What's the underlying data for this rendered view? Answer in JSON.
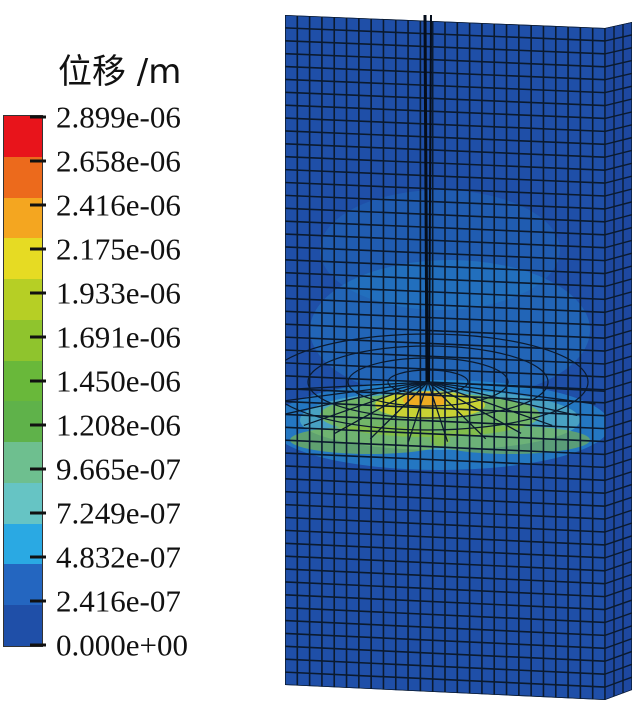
{
  "legend": {
    "title": "位移 /m",
    "levels": [
      {
        "label": "2.899e-06",
        "color": "#e8141b"
      },
      {
        "label": "2.658e-06",
        "color": "#ec6a1c"
      },
      {
        "label": "2.416e-06",
        "color": "#f4a620"
      },
      {
        "label": "2.175e-06",
        "color": "#e6db23"
      },
      {
        "label": "1.933e-06",
        "color": "#b6cf25"
      },
      {
        "label": "1.691e-06",
        "color": "#8fc42d"
      },
      {
        "label": "1.450e-06",
        "color": "#69b83a"
      },
      {
        "label": "1.208e-06",
        "color": "#5fb24a"
      },
      {
        "label": "9.665e-07",
        "color": "#6ebf8f"
      },
      {
        "label": "7.249e-07",
        "color": "#66c4c4"
      },
      {
        "label": "4.832e-07",
        "color": "#2aa9e3"
      },
      {
        "label": "2.416e-07",
        "color": "#2466c0"
      },
      {
        "label": "0.000e+00",
        "color": "#1f4fa8"
      }
    ]
  },
  "model": {
    "base_color": "#1f4fa8",
    "side_color": "#1e48a0",
    "grid_color": "#0b1a2e",
    "highlight_colors": [
      "#2aa9e3",
      "#66c4c4",
      "#8fc42d",
      "#e6db23",
      "#f4a620"
    ]
  }
}
